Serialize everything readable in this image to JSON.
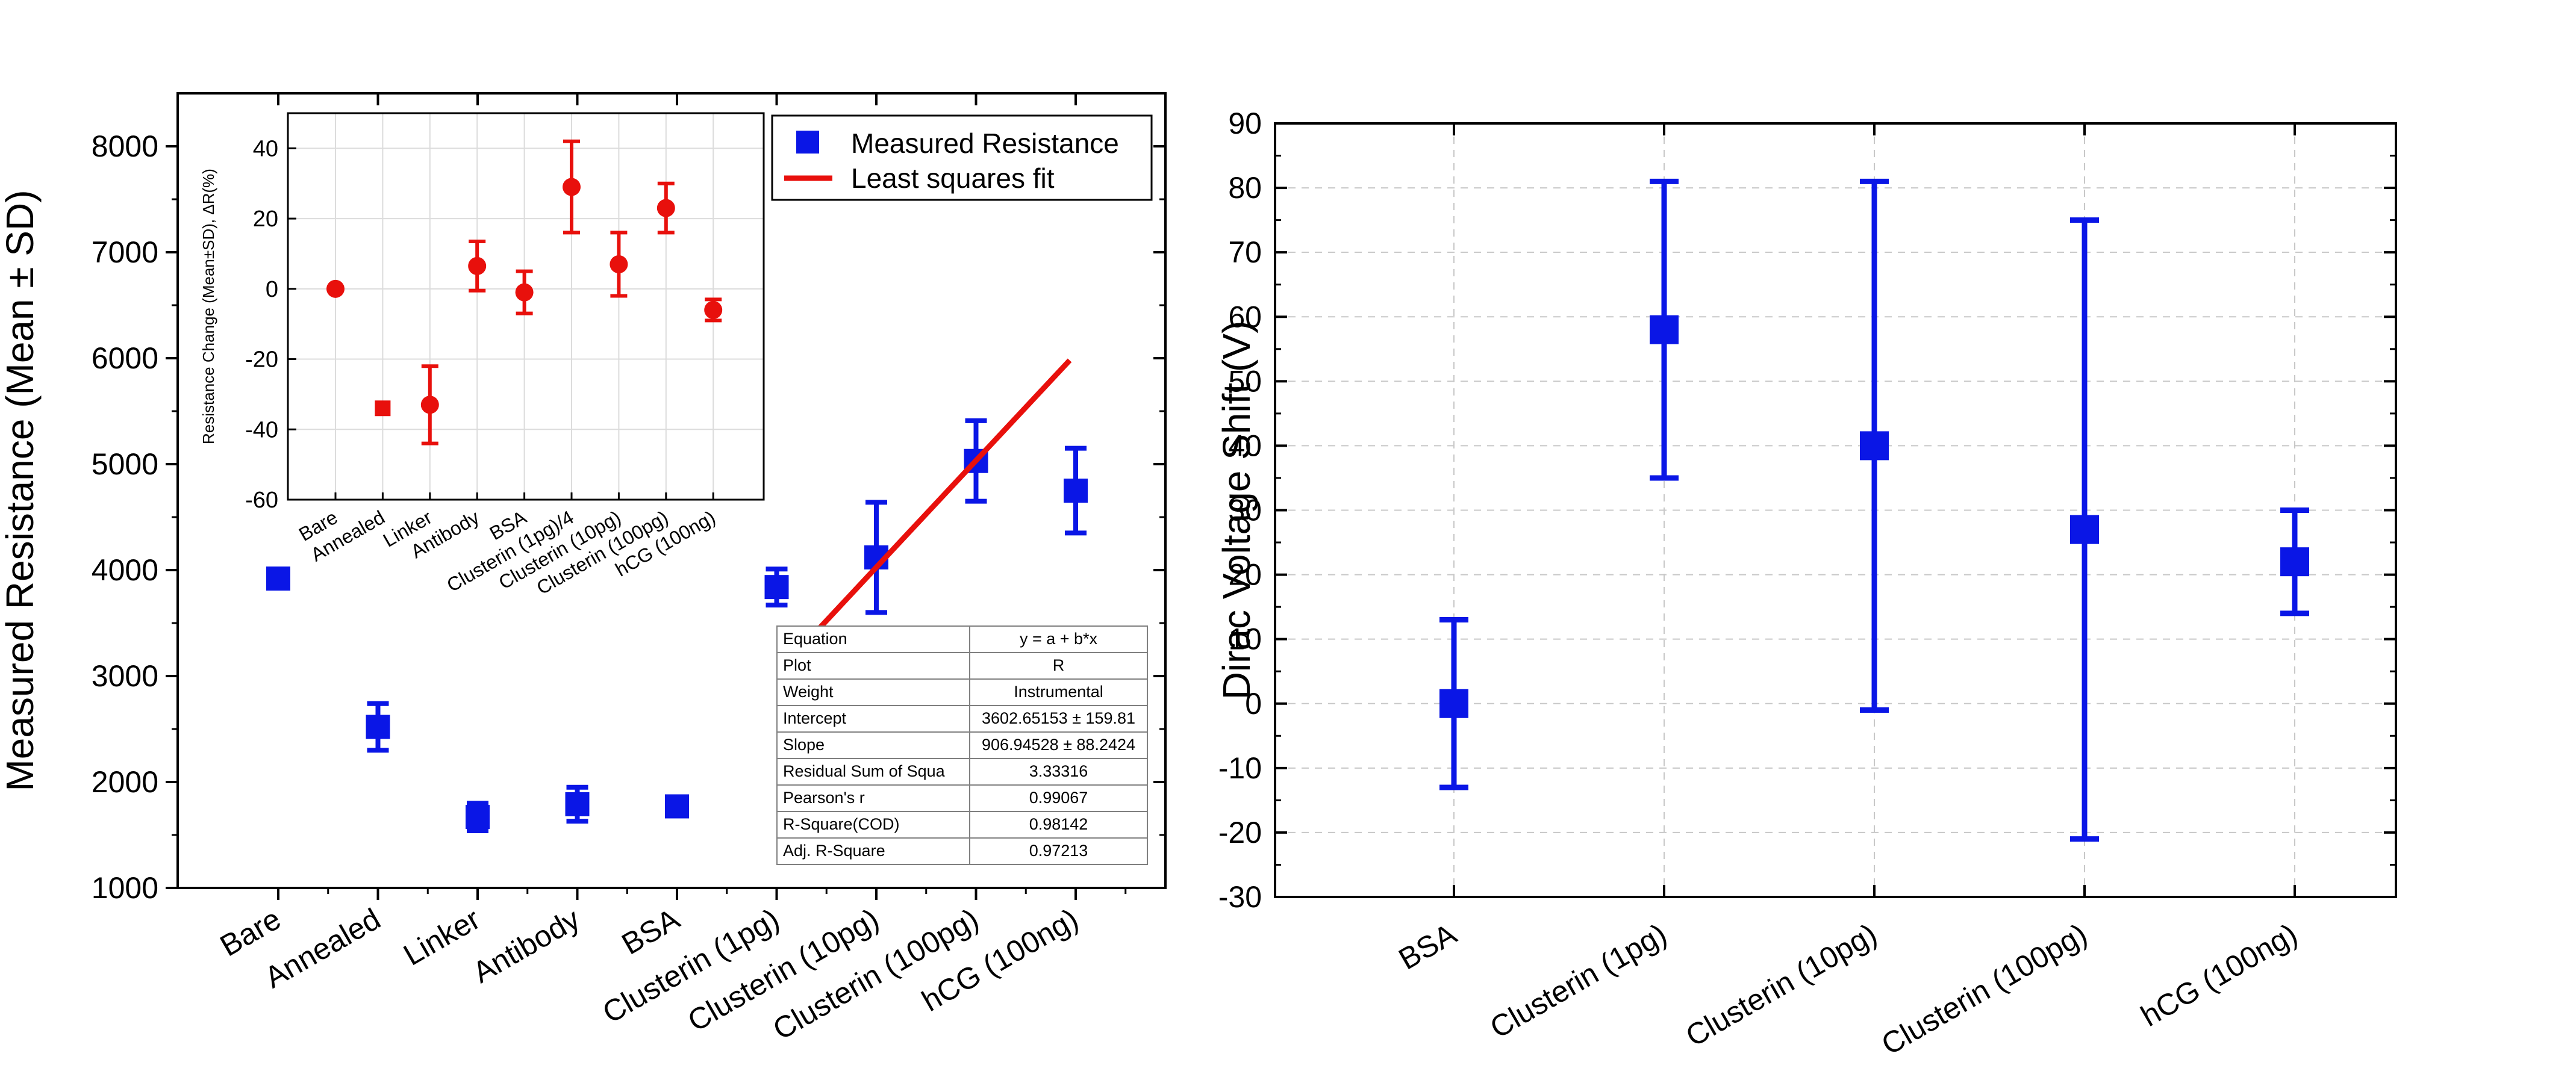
{
  "colors": {
    "blue": "#0a16e6",
    "red": "#e8100c",
    "grid": "#c8c8c8",
    "axis": "#000000"
  },
  "chart_data": [
    {
      "id": "left",
      "type": "scatter",
      "ylabel": "Measured Resistance (Mean ± SD)",
      "ylim": [
        1000,
        8500
      ],
      "yticks": [
        1000,
        2000,
        3000,
        4000,
        5000,
        6000,
        7000,
        8000
      ],
      "categories": [
        "Bare",
        "Annealed",
        "Linker",
        "Antibody",
        "BSA",
        "Clusterin (1pg)",
        "Clusterin (10pg)",
        "Clusterin (100pg)",
        "hCG (100ng)"
      ],
      "series": [
        {
          "name": "Measured Resistance",
          "values": [
            3920,
            2520,
            1670,
            1790,
            1770,
            3840,
            4120,
            5030,
            4750
          ],
          "errors": [
            0,
            220,
            130,
            160,
            0,
            170,
            520,
            380,
            400
          ]
        },
        {
          "name": "Least squares fit",
          "x": [
            5,
            8
          ],
          "values": [
            3050,
            5980
          ]
        }
      ],
      "legend": [
        "Measured Resistance",
        "Least squares fit"
      ],
      "fit_table": [
        [
          "Equation",
          "y = a + b*x"
        ],
        [
          "Plot",
          "R"
        ],
        [
          "Weight",
          "Instrumental"
        ],
        [
          "Intercept",
          "3602.65153 ± 159.81"
        ],
        [
          "Slope",
          "906.94528 ± 88.2424"
        ],
        [
          "Residual Sum of Squa",
          "3.33316"
        ],
        [
          "Pearson's r",
          "0.99067"
        ],
        [
          "R-Square(COD)",
          "0.98142"
        ],
        [
          "Adj. R-Square",
          "0.97213"
        ]
      ]
    },
    {
      "id": "inset",
      "type": "scatter",
      "ylabel": "Resistance Change (Mean±SD), ΔR(%)",
      "ylim": [
        -60,
        50
      ],
      "yticks": [
        -60,
        -40,
        -20,
        0,
        20,
        40
      ],
      "grid": true,
      "categories": [
        "Bare",
        "Annealed",
        "Linker",
        "Antibody",
        "BSA",
        "Clusterin (1pg)/4",
        "Clusterin (10pg)",
        "Clusterin (100pg)",
        "hCG (100ng)"
      ],
      "series": [
        {
          "name": "Resistance Change",
          "values": [
            0,
            -34,
            -33,
            6.5,
            -1,
            29,
            7,
            23,
            -6
          ],
          "errors": [
            0,
            0,
            11,
            7,
            6,
            13,
            9,
            7,
            3
          ]
        }
      ]
    },
    {
      "id": "right",
      "type": "scatter",
      "ylabel": "Dirac Voltage Shift (V)",
      "ylim": [
        -30,
        90
      ],
      "yticks": [
        -30,
        -20,
        -10,
        0,
        10,
        20,
        30,
        40,
        50,
        60,
        70,
        80,
        90
      ],
      "grid": true,
      "categories": [
        "BSA",
        "Clusterin (1pg)",
        "Clusterin (10pg)",
        "Clusterin (100pg)",
        "hCG (100ng)"
      ],
      "series": [
        {
          "name": "Dirac Voltage Shift",
          "values": [
            0,
            58,
            40,
            27,
            22
          ],
          "errors": [
            13,
            23,
            41,
            48,
            8
          ]
        }
      ]
    }
  ]
}
